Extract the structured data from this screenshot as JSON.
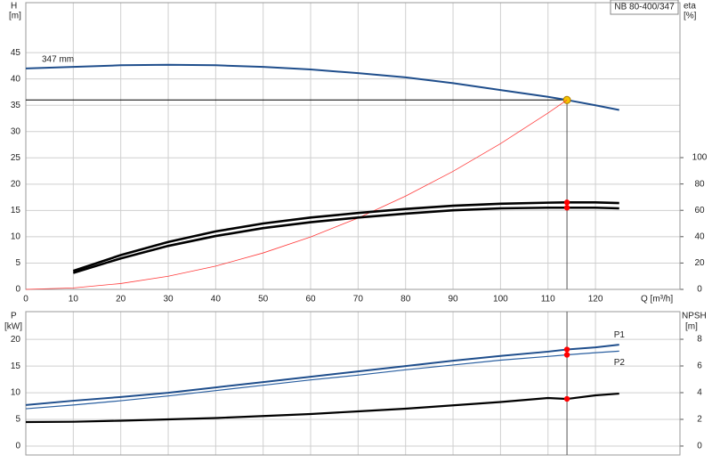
{
  "chart_data": [
    {
      "type": "line",
      "title": "NB 80-400/347",
      "xlabel": "Q [m³/h]",
      "ylabel": "H",
      "yunit": "[m]",
      "y2label": "eta",
      "y2unit": "[%]",
      "xlim": [
        0,
        137.8
      ],
      "xticks": [
        0,
        10,
        20,
        30,
        40,
        50,
        60,
        70,
        80,
        90,
        100,
        110,
        120
      ],
      "ylim": [
        0,
        54.5
      ],
      "yticks": [
        0,
        5,
        10,
        15,
        20,
        25,
        30,
        35,
        40,
        45
      ],
      "y2lim": [
        0,
        217.6
      ],
      "y2ticks": [
        0,
        20,
        40,
        60,
        80,
        100
      ],
      "grid": true,
      "operating_point": {
        "x": 114,
        "y": 36,
        "color": "#f5c400"
      },
      "series": [
        {
          "name": "347 mm",
          "color": "#1f4e8c",
          "axis": "y",
          "marker_color": "#f5c400",
          "x": [
            0,
            10,
            20,
            30,
            40,
            50,
            60,
            70,
            80,
            90,
            100,
            110,
            114,
            120,
            125
          ],
          "values": [
            42,
            42.3,
            42.6,
            42.7,
            42.6,
            42.3,
            41.8,
            41.1,
            40.3,
            39.2,
            37.9,
            36.6,
            36,
            35,
            34.1
          ]
        },
        {
          "color": "#ff3b3b",
          "axis": "y",
          "x": [
            0,
            10,
            20,
            30,
            40,
            50,
            60,
            70,
            80,
            90,
            100,
            110,
            114
          ],
          "values": [
            0,
            0.28,
            1.11,
            2.49,
            4.43,
            6.93,
            9.97,
            13.57,
            17.73,
            22.44,
            27.7,
            33.52,
            36
          ]
        },
        {
          "color": "#000000",
          "axis": "y2",
          "marker_color": "#ff0000",
          "x": [
            10,
            20,
            30,
            40,
            50,
            60,
            70,
            80,
            90,
            100,
            110,
            114,
            120,
            125
          ],
          "values": [
            14,
            26,
            36,
            44,
            50,
            54.5,
            58,
            61,
            63.5,
            65,
            65.8,
            66,
            66,
            65.5
          ]
        },
        {
          "color": "#000000",
          "axis": "y2",
          "marker_color": "#ff0000",
          "x": [
            10,
            20,
            30,
            40,
            50,
            60,
            70,
            80,
            90,
            100,
            110,
            114,
            120,
            125
          ],
          "values": [
            12.5,
            23.5,
            33,
            40.5,
            46.5,
            51,
            54.5,
            57.5,
            60,
            61.5,
            62,
            62,
            62,
            61.5
          ]
        }
      ]
    },
    {
      "type": "line",
      "ylabel": "P",
      "yunit": "[kW]",
      "y2label": "NPSH",
      "y2unit": "[m]",
      "xlim": [
        0,
        137.8
      ],
      "xticks": [
        0,
        10,
        20,
        30,
        40,
        50,
        60,
        70,
        80,
        90,
        100,
        110,
        120
      ],
      "ylim": [
        -1.67,
        25.2
      ],
      "yticks": [
        0,
        5,
        10,
        15,
        20
      ],
      "y2lim": [
        -0.67,
        10.07
      ],
      "y2ticks": [
        0,
        2,
        4,
        6,
        8
      ],
      "grid": true,
      "operating_x": 114,
      "series": [
        {
          "name": "P1",
          "color": "#1f4e8c",
          "axis": "y",
          "marker_color": "#ff0000",
          "x": [
            0,
            10,
            20,
            30,
            40,
            50,
            60,
            70,
            80,
            90,
            100,
            110,
            114,
            120,
            125
          ],
          "values": [
            7.7,
            8.5,
            9.2,
            10,
            11,
            12,
            13,
            14,
            15,
            16,
            16.9,
            17.7,
            18.1,
            18.5,
            19
          ]
        },
        {
          "name": "P2",
          "color": "#2a5fa0",
          "axis": "y",
          "marker_color": "#ff0000",
          "x": [
            0,
            10,
            20,
            30,
            40,
            50,
            60,
            70,
            80,
            90,
            100,
            110,
            114,
            120,
            125
          ],
          "values": [
            7,
            7.7,
            8.5,
            9.4,
            10.4,
            11.4,
            12.4,
            13.3,
            14.3,
            15.2,
            16.1,
            16.8,
            17.1,
            17.5,
            17.8
          ]
        },
        {
          "color": "#000000",
          "axis": "y2",
          "marker_color": "#ff0000",
          "x": [
            0,
            10,
            20,
            30,
            40,
            50,
            60,
            70,
            80,
            90,
            100,
            110,
            114,
            120,
            125
          ],
          "values": [
            1.8,
            1.82,
            1.9,
            2,
            2.1,
            2.25,
            2.4,
            2.6,
            2.8,
            3.05,
            3.3,
            3.6,
            3.53,
            3.8,
            3.93
          ]
        }
      ]
    }
  ]
}
